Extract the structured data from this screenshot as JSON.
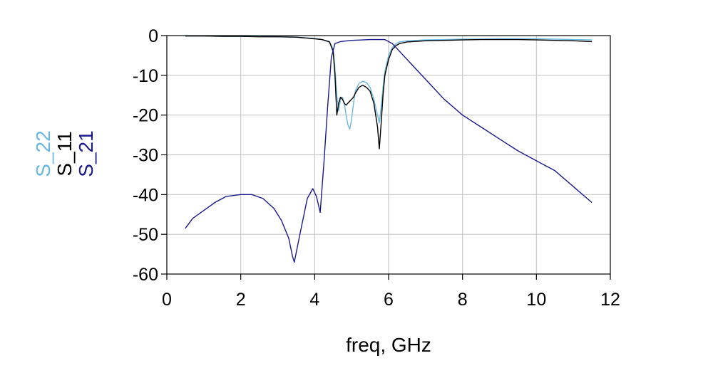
{
  "chart_data": {
    "type": "line",
    "title": "",
    "xlabel": "freq, GHz",
    "ylabel": "",
    "xlim": [
      0,
      12
    ],
    "ylim": [
      -60,
      0
    ],
    "x_ticks": [
      "0",
      "2",
      "4",
      "6",
      "8",
      "10",
      "12"
    ],
    "y_ticks": [
      "0",
      "-10",
      "-20",
      "-30",
      "-40",
      "-50",
      "-60"
    ],
    "grid": true,
    "series": [
      {
        "name": "S_22",
        "color": "#6ab7e0",
        "x": [
          0.5,
          1.0,
          1.5,
          2.0,
          2.5,
          3.0,
          3.5,
          4.0,
          4.2,
          4.4,
          4.5,
          4.55,
          4.6,
          4.65,
          4.7,
          4.75,
          4.8,
          4.85,
          4.9,
          4.95,
          5.0,
          5.05,
          5.1,
          5.2,
          5.3,
          5.4,
          5.5,
          5.6,
          5.7,
          5.75,
          5.8,
          5.85,
          5.9,
          6.0,
          6.1,
          6.2,
          6.3,
          6.5,
          7.0,
          7.5,
          8.0,
          8.5,
          9.0,
          9.5,
          10.0,
          10.5,
          11.0,
          11.5
        ],
        "y": [
          -0.1,
          -0.1,
          -0.2,
          -0.2,
          -0.2,
          -0.3,
          -0.4,
          -0.7,
          -1.0,
          -1.5,
          -3.5,
          -8,
          -15,
          -19,
          -16,
          -15.5,
          -17,
          -20,
          -22.5,
          -23.5,
          -21,
          -17,
          -14,
          -12,
          -11.5,
          -11.8,
          -13,
          -16,
          -20,
          -22,
          -18,
          -13,
          -9,
          -5,
          -3,
          -2,
          -1.6,
          -1.3,
          -1.1,
          -1.0,
          -0.9,
          -0.9,
          -0.8,
          -0.8,
          -0.8,
          -0.9,
          -1.0,
          -1.1
        ]
      },
      {
        "name": "S_11",
        "color": "#000000",
        "x": [
          0.5,
          1.0,
          1.5,
          2.0,
          2.5,
          3.0,
          3.5,
          4.0,
          4.2,
          4.4,
          4.5,
          4.55,
          4.6,
          4.65,
          4.7,
          4.75,
          4.8,
          4.85,
          4.9,
          4.95,
          5.0,
          5.05,
          5.1,
          5.2,
          5.3,
          5.4,
          5.5,
          5.6,
          5.7,
          5.75,
          5.8,
          5.85,
          5.9,
          6.0,
          6.1,
          6.2,
          6.3,
          6.5,
          7.0,
          7.5,
          8.0,
          8.5,
          9.0,
          9.5,
          10.0,
          10.5,
          11.0,
          11.5
        ],
        "y": [
          -0.1,
          -0.1,
          -0.2,
          -0.2,
          -0.3,
          -0.3,
          -0.4,
          -0.8,
          -1.0,
          -1.6,
          -4,
          -10,
          -20,
          -17,
          -15.5,
          -16,
          -17,
          -17.5,
          -17,
          -16.5,
          -16,
          -15.5,
          -14.5,
          -13,
          -12.5,
          -13,
          -14,
          -17,
          -23,
          -28.5,
          -22,
          -15,
          -10,
          -6,
          -3.5,
          -2.5,
          -2.0,
          -1.6,
          -1.3,
          -1.2,
          -1.1,
          -1.0,
          -1.0,
          -1.0,
          -1.1,
          -1.2,
          -1.3,
          -1.5
        ]
      },
      {
        "name": "S_21",
        "color": "#1a1a8c",
        "x": [
          0.5,
          0.7,
          1.0,
          1.3,
          1.6,
          2.0,
          2.3,
          2.6,
          2.9,
          3.1,
          3.3,
          3.4,
          3.45,
          3.6,
          3.8,
          3.95,
          4.05,
          4.15,
          4.25,
          4.35,
          4.45,
          4.55,
          4.7,
          5.0,
          5.5,
          5.9,
          6.1,
          6.3,
          6.5,
          7.0,
          7.5,
          8.0,
          8.5,
          9.0,
          9.5,
          10.0,
          10.5,
          11.0,
          11.5
        ],
        "y": [
          -48.5,
          -46,
          -44,
          -42,
          -40.5,
          -40,
          -40,
          -41,
          -43.5,
          -46.5,
          -51,
          -55.5,
          -57,
          -50,
          -41,
          -38.5,
          -40.5,
          -44.5,
          -32,
          -18,
          -5.5,
          -2,
          -1.5,
          -1.2,
          -1.0,
          -1.0,
          -2,
          -4,
          -6,
          -11,
          -16,
          -20,
          -23,
          -26,
          -29,
          -31.5,
          -34,
          -38,
          -42
        ]
      }
    ]
  }
}
